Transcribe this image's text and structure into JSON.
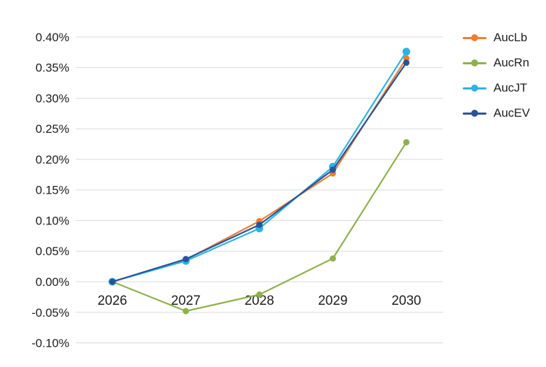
{
  "chart_data": {
    "type": "line",
    "title": "",
    "categories": [
      "2026",
      "2027",
      "2028",
      "2029",
      "2030"
    ],
    "series": [
      {
        "name": "AucLb",
        "color": "#ED7D31",
        "marker_radius": 4.5,
        "values": [
          0.0,
          0.036,
          0.099,
          0.177,
          0.365
        ]
      },
      {
        "name": "AucRn",
        "color": "#8EB14C",
        "marker_radius": 4.5,
        "values": [
          0.0,
          -0.048,
          -0.021,
          0.038,
          0.228
        ]
      },
      {
        "name": "AucJT",
        "color": "#2BB2E6",
        "marker_radius": 5.5,
        "values": [
          0.0,
          0.034,
          0.087,
          0.188,
          0.376
        ]
      },
      {
        "name": "AucEV",
        "color": "#2A5299",
        "marker_radius": 4.5,
        "values": [
          0.0,
          0.037,
          0.093,
          0.183,
          0.358
        ]
      }
    ],
    "xlabel": "",
    "ylabel": "",
    "y_axis": {
      "min": -0.1,
      "max": 0.4,
      "step": 0.05,
      "unit": "%",
      "tick_labels": [
        "0.40%",
        "0.35%",
        "0.30%",
        "0.25%",
        "0.20%",
        "0.15%",
        "0.10%",
        "0.05%",
        "0.00%",
        "-0.05%",
        "-0.10%"
      ]
    },
    "grid": true,
    "legend_position": "right",
    "legend_entries": [
      "AucLb",
      "AucRn",
      "AucJT",
      "AucEV"
    ]
  },
  "style": {
    "background": "#ffffff",
    "grid_color": "#d9d9d9",
    "text_color": "#1c1c1c"
  }
}
